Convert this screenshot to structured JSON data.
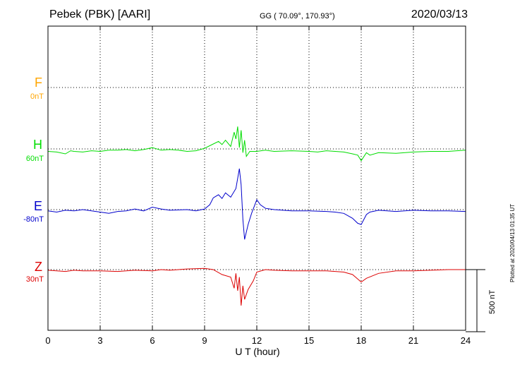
{
  "header": {
    "station": "Pebek (PBK)  [AARI]",
    "coords": "GG ( 70.09°, 170.93°)",
    "date": "2020/03/13"
  },
  "side_note": "Plotted at 2020/04/13 01:35 UT",
  "chart_data": {
    "type": "line",
    "xlabel": "U T (hour)",
    "xlim": [
      0,
      24
    ],
    "x_ticks": [
      "0",
      "3",
      "6",
      "9",
      "12",
      "15",
      "18",
      "21",
      "24"
    ],
    "scale_bar": {
      "label": "500 nT",
      "value_nT": 500
    },
    "channels": [
      {
        "name": "F",
        "baseline": "0nT",
        "color": "#ffa500",
        "points": []
      },
      {
        "name": "H",
        "baseline": "60nT",
        "color": "#00dd00",
        "points": [
          [
            0,
            -20
          ],
          [
            0.5,
            -25
          ],
          [
            1,
            -40
          ],
          [
            1.3,
            -15
          ],
          [
            1.5,
            -20
          ],
          [
            2,
            -25
          ],
          [
            2.5,
            -15
          ],
          [
            3,
            -20
          ],
          [
            3.5,
            -10
          ],
          [
            4,
            -10
          ],
          [
            4.5,
            -5
          ],
          [
            5,
            -15
          ],
          [
            5.5,
            -5
          ],
          [
            6,
            10
          ],
          [
            6.5,
            -10
          ],
          [
            7,
            -5
          ],
          [
            7.5,
            -10
          ],
          [
            8,
            -20
          ],
          [
            8.5,
            -15
          ],
          [
            9,
            5
          ],
          [
            9.5,
            40
          ],
          [
            9.8,
            60
          ],
          [
            10,
            35
          ],
          [
            10.2,
            70
          ],
          [
            10.5,
            20
          ],
          [
            10.7,
            135
          ],
          [
            10.8,
            80
          ],
          [
            10.9,
            180
          ],
          [
            11,
            10
          ],
          [
            11.1,
            150
          ],
          [
            11.2,
            -30
          ],
          [
            11.3,
            70
          ],
          [
            11.4,
            -60
          ],
          [
            11.6,
            -20
          ],
          [
            12,
            -20
          ],
          [
            12.5,
            -10
          ],
          [
            13,
            -20
          ],
          [
            14,
            -15
          ],
          [
            15,
            -20
          ],
          [
            15.5,
            -25
          ],
          [
            16,
            -15
          ],
          [
            16.5,
            -20
          ],
          [
            17,
            -25
          ],
          [
            17.5,
            -40
          ],
          [
            17.8,
            -50
          ],
          [
            18,
            -95
          ],
          [
            18.3,
            -30
          ],
          [
            18.5,
            -50
          ],
          [
            19,
            -30
          ],
          [
            20,
            -35
          ],
          [
            21,
            -25
          ],
          [
            22,
            -20
          ],
          [
            23,
            -20
          ],
          [
            24,
            -10
          ]
        ]
      },
      {
        "name": "E",
        "baseline": "-80nT",
        "color": "#0000cc",
        "points": [
          [
            0,
            -10
          ],
          [
            0.5,
            -20
          ],
          [
            1,
            -5
          ],
          [
            1.5,
            -10
          ],
          [
            2,
            0
          ],
          [
            2.5,
            -10
          ],
          [
            3,
            -20
          ],
          [
            3.5,
            -30
          ],
          [
            4,
            -15
          ],
          [
            4.5,
            -10
          ],
          [
            5,
            5
          ],
          [
            5.5,
            -10
          ],
          [
            6,
            20
          ],
          [
            6.5,
            5
          ],
          [
            7,
            -5
          ],
          [
            8,
            0
          ],
          [
            8.5,
            -10
          ],
          [
            9,
            5
          ],
          [
            9.3,
            40
          ],
          [
            9.5,
            95
          ],
          [
            9.8,
            120
          ],
          [
            10,
            90
          ],
          [
            10.2,
            135
          ],
          [
            10.5,
            100
          ],
          [
            10.8,
            170
          ],
          [
            11,
            330
          ],
          [
            11.1,
            200
          ],
          [
            11.2,
            -80
          ],
          [
            11.3,
            -240
          ],
          [
            11.5,
            -120
          ],
          [
            11.7,
            -30
          ],
          [
            12,
            80
          ],
          [
            12.2,
            40
          ],
          [
            12.5,
            10
          ],
          [
            13,
            0
          ],
          [
            14,
            -10
          ],
          [
            15,
            -10
          ],
          [
            16,
            -15
          ],
          [
            16.5,
            -20
          ],
          [
            17,
            -30
          ],
          [
            17.5,
            -70
          ],
          [
            17.8,
            -110
          ],
          [
            18,
            -120
          ],
          [
            18.3,
            -40
          ],
          [
            18.5,
            -20
          ],
          [
            19,
            -5
          ],
          [
            20,
            -15
          ],
          [
            21,
            -5
          ],
          [
            22,
            -10
          ],
          [
            23,
            -10
          ],
          [
            24,
            -15
          ]
        ]
      },
      {
        "name": "Z",
        "baseline": "30nT",
        "color": "#dd0000",
        "points": [
          [
            0,
            -5
          ],
          [
            0.5,
            -10
          ],
          [
            1,
            -15
          ],
          [
            1.5,
            -5
          ],
          [
            2,
            -10
          ],
          [
            3,
            -10
          ],
          [
            4,
            -15
          ],
          [
            5,
            -5
          ],
          [
            6,
            -10
          ],
          [
            6.5,
            0
          ],
          [
            7,
            -5
          ],
          [
            8,
            5
          ],
          [
            9,
            10
          ],
          [
            9.5,
            0
          ],
          [
            10,
            -40
          ],
          [
            10.5,
            -60
          ],
          [
            10.7,
            -150
          ],
          [
            10.8,
            -30
          ],
          [
            10.9,
            -170
          ],
          [
            11,
            -60
          ],
          [
            11.1,
            -290
          ],
          [
            11.2,
            -130
          ],
          [
            11.3,
            -240
          ],
          [
            11.5,
            -160
          ],
          [
            11.8,
            -90
          ],
          [
            12,
            -20
          ],
          [
            12.5,
            0
          ],
          [
            13,
            -5
          ],
          [
            14,
            -10
          ],
          [
            15,
            -10
          ],
          [
            16,
            -10
          ],
          [
            17,
            -20
          ],
          [
            17.5,
            -40
          ],
          [
            18,
            -100
          ],
          [
            18.3,
            -70
          ],
          [
            19,
            -30
          ],
          [
            20,
            -10
          ],
          [
            21,
            -10
          ],
          [
            22,
            -5
          ],
          [
            23,
            0
          ],
          [
            24,
            0
          ]
        ]
      }
    ]
  }
}
